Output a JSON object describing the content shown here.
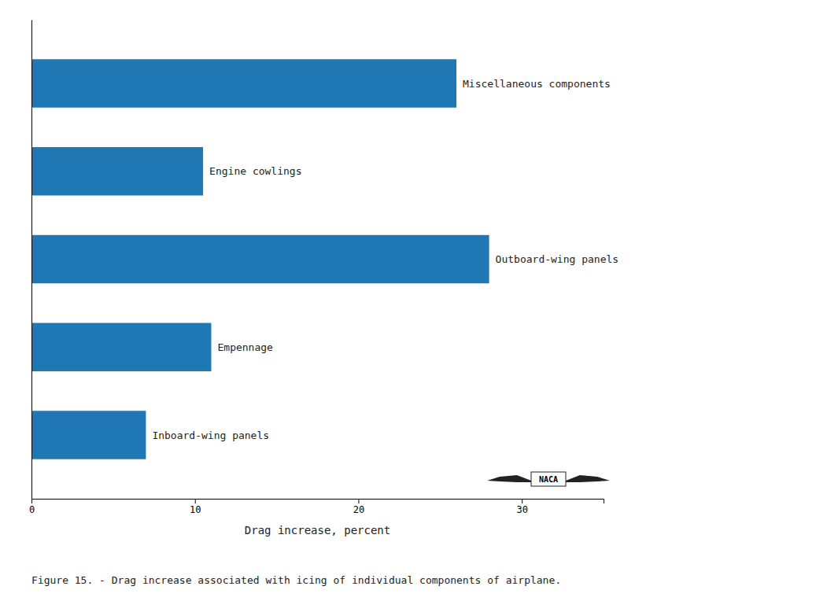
{
  "chart_data": {
    "type": "bar",
    "orientation": "horizontal",
    "title": "Figure 15. - Drag increase associated with icing of individual components of airplane.",
    "categories": [
      "Inboard-wing panels",
      "Empennage",
      "Outboard-wing panels",
      "Engine cowlings",
      "Miscellaneous components"
    ],
    "values": [
      7.0,
      11.0,
      28.0,
      10.5,
      26.0
    ],
    "xlabel": "Drag increase, percent",
    "xlim": [
      0,
      35
    ],
    "xticks": [
      0,
      10,
      20,
      30
    ],
    "tick_labels": "x",
    "grid": false,
    "annotations": [
      "NACA"
    ]
  }
}
